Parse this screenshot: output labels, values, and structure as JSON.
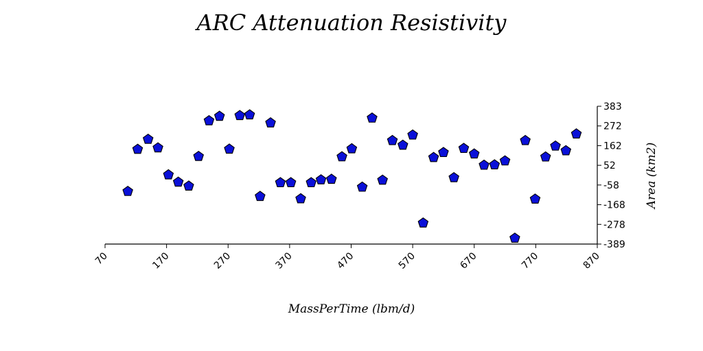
{
  "chart_data": {
    "type": "scatter",
    "title": "ARC Attenuation Resistivity",
    "xlabel": "MassPerTime (lbm/d)",
    "ylabel": "Area (km2)",
    "xlim": [
      70,
      870
    ],
    "ylim": [
      -389,
      383
    ],
    "x_ticks": [
      "70",
      "170",
      "270",
      "370",
      "470",
      "570",
      "670",
      "770",
      "870"
    ],
    "y_ticks": [
      "383",
      "272",
      "162",
      "52",
      "-58",
      "-168",
      "-278",
      "-389"
    ],
    "y_axis_side": "right",
    "grid": false,
    "legend": "none",
    "marker": "pentagon",
    "color": "#0a10d8",
    "series": [
      {
        "x": [
          107,
          123,
          140,
          156,
          173,
          189,
          206,
          222,
          239,
          256,
          272,
          289,
          305,
          322,
          339,
          355,
          372,
          388,
          405,
          421,
          438,
          455,
          471,
          488,
          504,
          521,
          537,
          554,
          570,
          587,
          604,
          620,
          637,
          653,
          670,
          686,
          703,
          720,
          736,
          753,
          769,
          786,
          802,
          819,
          836
        ],
        "y": [
          -94,
          142,
          198,
          150,
          -1,
          -42,
          -64,
          102,
          302,
          327,
          143,
          331,
          335,
          -122,
          290,
          -45,
          -45,
          -135,
          -45,
          -29,
          -26,
          100,
          145,
          -70,
          317,
          -31,
          191,
          165,
          222,
          -271,
          96,
          124,
          -17,
          147,
          116,
          53,
          55,
          77,
          -356,
          191,
          -137,
          99,
          160,
          134,
          228
        ]
      }
    ]
  }
}
